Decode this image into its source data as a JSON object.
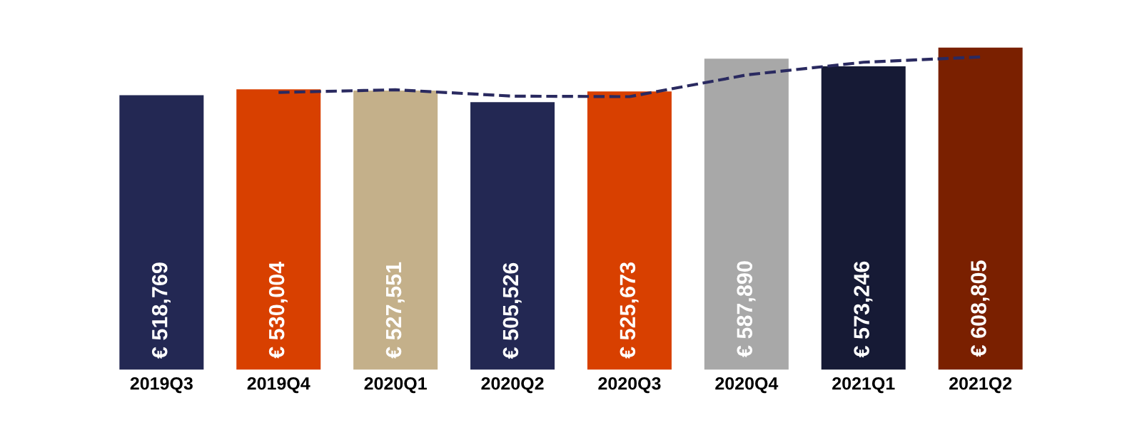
{
  "chart_data": {
    "type": "bar",
    "categories": [
      "2019Q3",
      "2019Q4",
      "2020Q1",
      "2020Q2",
      "2020Q3",
      "2020Q4",
      "2021Q1",
      "2021Q2"
    ],
    "series": [
      {
        "values": [
          518769,
          530004,
          527551,
          505526,
          525673,
          587890,
          573246,
          608805
        ],
        "colors": [
          "#232853",
          "#d84000",
          "#c4b08a",
          "#232853",
          "#d84000",
          "#a8a8a8",
          "#161a35",
          "#7a2000"
        ],
        "value_labels": [
          "€ 518,769",
          "€ 530,004",
          "€ 527,551",
          "€ 505,526",
          "€ 525,673",
          "€ 587,890",
          "€ 573,246",
          "€ 608,805"
        ]
      },
      {
        "type": "line",
        "color": "#2a2a60",
        "line_style": "dashed",
        "values": [
          null,
          524000,
          529000,
          517000,
          516000,
          557000,
          581000,
          591000
        ]
      }
    ],
    "grid": false,
    "legend": false,
    "tick_labels": "x"
  }
}
